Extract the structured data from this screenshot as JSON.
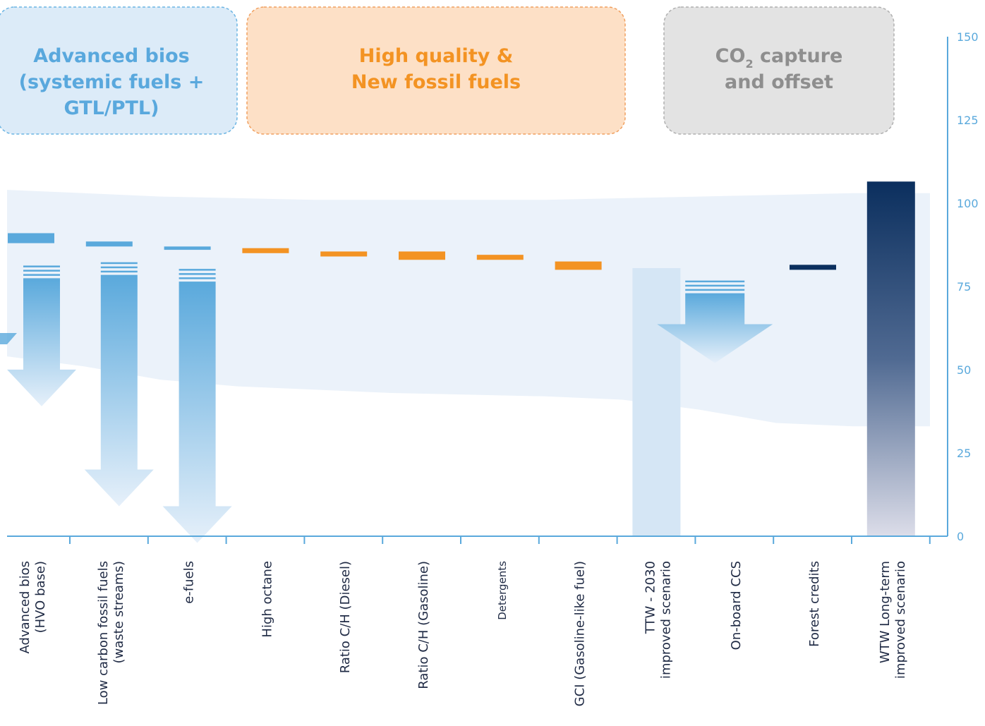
{
  "colors": {
    "blue_box_fill": "#dcebf8",
    "blue_box_border": "#6cb5e3",
    "blue_text": "#59a8dd",
    "orange_box_fill": "#fde0c6",
    "orange_box_border": "#f0a060",
    "orange_text": "#f39323",
    "grey_box_fill": "#e3e3e3",
    "grey_box_border": "#b0b0b0",
    "grey_text": "#8e8e8e",
    "band_fill": "#ebf2fa",
    "axis": "#5aa9dc",
    "bar_blue": "#5aa9dc",
    "bar_orange": "#f39323",
    "bar_navy": "#0b2f5e",
    "bar_light": "#d5e6f5"
  },
  "boxes": [
    {
      "lines": [
        "Advanced bios",
        "(systemic fuels +",
        "GTL/PTL)"
      ],
      "theme": "blue"
    },
    {
      "lines": [
        "High quality &",
        "New fossil fuels"
      ],
      "theme": "orange"
    },
    {
      "lines": [
        "CO",
        "and offset"
      ],
      "sub_first": "2",
      "suffix_first": " capture",
      "theme": "grey"
    }
  ],
  "chart_data": {
    "type": "bar",
    "y_axis": {
      "min": 0,
      "max": 150,
      "ticks": [
        0,
        25,
        50,
        75,
        100,
        125,
        150
      ],
      "position": "right"
    },
    "categories": [
      [
        "Advanced bios",
        "(HVO base)"
      ],
      [
        "Low carbon fossil fuels",
        "(waste streams)"
      ],
      [
        "e-fuels"
      ],
      [
        "High octane"
      ],
      [
        "Ratio C/H (Diesel)"
      ],
      [
        "Ratio C/H (Gasoline)"
      ],
      [
        "Detergents"
      ],
      [
        "GCI (Gasoline-like fuel)"
      ],
      [
        "TTW - 2030",
        "improved scenario"
      ],
      [
        "On-board CCS"
      ],
      [
        "Forest credits"
      ],
      [
        "WTW Long-term",
        "improved scenario"
      ]
    ],
    "markers": [
      {
        "category": 0,
        "low": 88,
        "high": 91,
        "color": "blue"
      },
      {
        "category": 1,
        "low": 87,
        "high": 88.5,
        "color": "blue"
      },
      {
        "category": 2,
        "low": 86,
        "high": 87,
        "color": "blue"
      },
      {
        "category": 3,
        "low": 85,
        "high": 86.5,
        "color": "orange"
      },
      {
        "category": 4,
        "low": 84,
        "high": 85.5,
        "color": "orange"
      },
      {
        "category": 5,
        "low": 83,
        "high": 85.5,
        "color": "orange"
      },
      {
        "category": 6,
        "low": 83,
        "high": 84.5,
        "color": "orange"
      },
      {
        "category": 7,
        "low": 80,
        "high": 82.5,
        "color": "orange"
      },
      {
        "category": 10,
        "low": 80,
        "high": 81.5,
        "color": "navy"
      }
    ],
    "bars": [
      {
        "category": 8,
        "value": 80.5,
        "style": "light"
      },
      {
        "category": 11,
        "value": 106.5,
        "style": "navy-gradient"
      }
    ],
    "reduction_arrows": [
      {
        "category": 0,
        "from": 80,
        "to": 39
      },
      {
        "category": 1,
        "from": 81,
        "to": 9
      },
      {
        "category": 2,
        "from": 79,
        "to": -2
      },
      {
        "category": 9,
        "from": 75.5,
        "to": 52
      }
    ],
    "band_upper": [
      104,
      103,
      102,
      101.5,
      101,
      101,
      101,
      101,
      101.5,
      102,
      102.5,
      103,
      103
    ],
    "band_lower": [
      54,
      51,
      47,
      45,
      44,
      43,
      42.5,
      42,
      41,
      38,
      34,
      33,
      33
    ]
  }
}
